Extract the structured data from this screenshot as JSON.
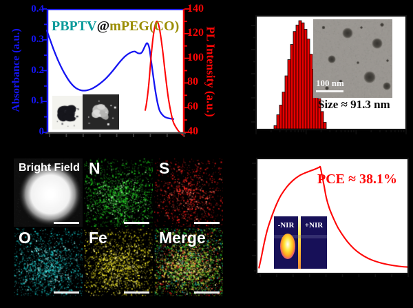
{
  "colors": {
    "background": "#000000",
    "absorbance_blue": "#1515f2",
    "pl_red": "#fe0606",
    "title_teal": "#0b9b9b",
    "title_black": "#101010",
    "title_olive": "#9a8d00",
    "histogram_bar_red": "#e60000",
    "eds_n_green": "#1fc51f",
    "eds_s_red": "#e81616",
    "eds_o_cyan": "#14b4b4",
    "eds_fe_yellow": "#d8ce16",
    "thermal_inset_navy": "#171058"
  },
  "panel_absorption": {
    "title": {
      "part1": "PBPTV",
      "part2": "@",
      "part3": "mPEG(CO)",
      "part1_color": "#0b9b9b",
      "part2_color": "#101010",
      "part3_color": "#9a8d00"
    },
    "left_axis_label": "Absorbance (a.u.)",
    "right_axis_label": "PL Intensity (a.u.)",
    "left_ticks": [
      "0",
      "0.1",
      "0.2",
      "0.3",
      "0.4"
    ],
    "right_ticks": [
      "40",
      "60",
      "80",
      "100",
      "120",
      "140"
    ]
  },
  "panel_dls": {
    "size_annotation": "Size ≈ 91.3 nm",
    "scalebar_label": "100 nm"
  },
  "panel_eds": {
    "tiles": [
      {
        "label": "Bright Field",
        "kind": "bright-field"
      },
      {
        "label": "N",
        "kind": "dots",
        "color": "#1fc51f"
      },
      {
        "label": "S",
        "kind": "dots",
        "color": "#e81616"
      },
      {
        "label": "O",
        "kind": "dots",
        "color": "#14b4b4"
      },
      {
        "label": "Fe",
        "kind": "dots",
        "color": "#d8ce16"
      },
      {
        "label": "Merge",
        "kind": "merge"
      }
    ]
  },
  "panel_photothermal": {
    "pce_annotation": "PCE ≈ 38.1%",
    "inset_left_label": "-NIR",
    "inset_right_label": "+NIR"
  },
  "chart_data": [
    {
      "id": "absorbance_pl_spectra",
      "type": "line",
      "title": "PBPTV@mPEG(CO)",
      "ylabel_left": "Absorbance (a.u.)",
      "ylim_left": [
        0,
        0.4
      ],
      "ylabel_right": "PL Intensity (a.u.)",
      "ylim_right": [
        40,
        140
      ],
      "xlabel_note": "x tick labels not visible in image (9 unlabeled ticks)",
      "legend_position": "none",
      "grid": false,
      "series": [
        {
          "name": "Absorbance",
          "axis": "left",
          "color": "#1515f2",
          "x_fraction": [
            0,
            0.02,
            0.05,
            0.09,
            0.13,
            0.17,
            0.21,
            0.25,
            0.29,
            0.33,
            0.38,
            0.43,
            0.48,
            0.53,
            0.57,
            0.61,
            0.64,
            0.665,
            0.69,
            0.715,
            0.73,
            0.745,
            0.76,
            0.78,
            0.8,
            0.82,
            0.85,
            0.88,
            0.92
          ],
          "y": [
            0.33,
            0.305,
            0.268,
            0.225,
            0.19,
            0.162,
            0.144,
            0.136,
            0.136,
            0.142,
            0.156,
            0.175,
            0.2,
            0.228,
            0.247,
            0.259,
            0.262,
            0.256,
            0.259,
            0.281,
            0.289,
            0.272,
            0.225,
            0.16,
            0.105,
            0.07,
            0.052,
            0.046,
            0.043
          ]
        },
        {
          "name": "PL Intensity",
          "axis": "right",
          "color": "#fe0606",
          "x_fraction": [
            0.715,
            0.725,
            0.74,
            0.755,
            0.77,
            0.785,
            0.8,
            0.815,
            0.83,
            0.845,
            0.86,
            0.88,
            0.9,
            0.92,
            0.95,
            0.975,
            1.0
          ],
          "y": [
            58,
            64,
            78,
            98,
            115,
            126,
            130,
            126,
            116,
            103,
            88,
            70,
            57,
            48,
            42,
            39,
            37
          ]
        }
      ]
    },
    {
      "id": "size_distribution_histogram",
      "type": "bar",
      "x_scale": "log",
      "xlim": [
        10,
        10000
      ],
      "xlabel_note": "x tick labels not visible (log decades 10-10000)",
      "ylabel_note": "y tick labels not visible",
      "bar_color": "#e60000",
      "bar_edge_color": "#000000",
      "n_bars": 19,
      "values_percent_of_max": [
        3,
        13,
        22,
        34,
        49,
        64,
        78,
        90,
        96,
        100,
        98,
        92,
        83,
        69,
        55,
        41,
        28,
        16,
        6
      ],
      "annotation": "Size ≈ 91.3 nm",
      "inset_note": "TEM micrograph inset with 100 nm scale bar"
    },
    {
      "id": "photothermal_heating_cooling",
      "type": "line",
      "annotation": "PCE ≈ 38.1%",
      "xlabel_note": "x tick labels not visible (time)",
      "ylabel_note": "y tick labels not visible (temperature)",
      "series": [
        {
          "name": "Temperature",
          "color": "#fe0606",
          "x_fraction": [
            0.015,
            0.03,
            0.05,
            0.07,
            0.1,
            0.13,
            0.16,
            0.2,
            0.24,
            0.28,
            0.32,
            0.36,
            0.39,
            0.415,
            0.42,
            0.43,
            0.445,
            0.46,
            0.48,
            0.51,
            0.54,
            0.58,
            0.62,
            0.66,
            0.71,
            0.76,
            0.82,
            0.88,
            0.94,
            1.0
          ],
          "y_normalized": [
            0.05,
            0.14,
            0.27,
            0.38,
            0.5,
            0.6,
            0.68,
            0.755,
            0.81,
            0.85,
            0.875,
            0.895,
            0.91,
            0.925,
            0.925,
            0.86,
            0.76,
            0.655,
            0.565,
            0.47,
            0.39,
            0.31,
            0.245,
            0.195,
            0.15,
            0.118,
            0.092,
            0.075,
            0.063,
            0.056
          ]
        }
      ],
      "inset_note": "IR thermal camera images: -NIR and +NIR"
    }
  ]
}
